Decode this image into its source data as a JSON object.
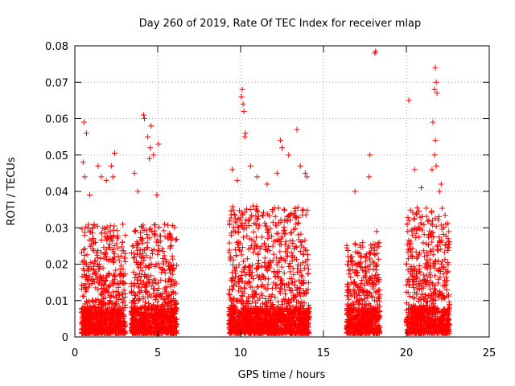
{
  "chart_data": {
    "type": "scatter",
    "title": "Day 260 of 2019, Rate Of TEC Index for receiver mlap",
    "xlabel": "GPS time / hours",
    "ylabel": "ROTI / TECUs",
    "xlim": [
      0,
      25
    ],
    "ylim": [
      0,
      0.08
    ],
    "x_ticks": [
      0,
      5,
      10,
      15,
      20,
      25
    ],
    "x_tick_labels": [
      "0",
      "5",
      "10",
      "15",
      "20",
      "25"
    ],
    "y_ticks": [
      0,
      0.01,
      0.02,
      0.03,
      0.04,
      0.05,
      0.06,
      0.07,
      0.08
    ],
    "y_tick_labels": [
      "0",
      "0.01",
      "0.02",
      "0.03",
      "0.04",
      "0.05",
      "0.06",
      "0.07",
      "0.08"
    ],
    "grid": true,
    "marker": "+",
    "color": "#ff0000",
    "series": [
      {
        "name": "ROTI",
        "clusters": [
          {
            "x_start": 0.4,
            "x_end": 3.05,
            "typical_max": 0.03
          },
          {
            "x_start": 3.4,
            "x_end": 6.15,
            "typical_max": 0.03
          },
          {
            "x_start": 9.3,
            "x_end": 14.15,
            "typical_max": 0.035
          },
          {
            "x_start": 16.4,
            "x_end": 18.4,
            "typical_max": 0.025
          },
          {
            "x_start": 20.0,
            "x_end": 22.6,
            "typical_max": 0.035
          }
        ],
        "points": [
          [
            0.55,
            0.059
          ],
          [
            0.7,
            0.056
          ],
          [
            0.5,
            0.048
          ],
          [
            0.6,
            0.044
          ],
          [
            1.4,
            0.047
          ],
          [
            1.6,
            0.044
          ],
          [
            2.2,
            0.047
          ],
          [
            2.4,
            0.0505
          ],
          [
            2.3,
            0.044
          ],
          [
            1.9,
            0.043
          ],
          [
            0.9,
            0.039
          ],
          [
            3.6,
            0.045
          ],
          [
            4.15,
            0.061
          ],
          [
            4.2,
            0.06
          ],
          [
            4.4,
            0.055
          ],
          [
            4.55,
            0.052
          ],
          [
            4.6,
            0.058
          ],
          [
            4.75,
            0.05
          ],
          [
            5.05,
            0.053
          ],
          [
            4.5,
            0.049
          ],
          [
            4.95,
            0.039
          ],
          [
            3.8,
            0.04
          ],
          [
            10.1,
            0.068
          ],
          [
            10.05,
            0.066
          ],
          [
            10.15,
            0.064
          ],
          [
            10.2,
            0.062
          ],
          [
            10.3,
            0.056
          ],
          [
            10.25,
            0.055
          ],
          [
            9.5,
            0.046
          ],
          [
            10.6,
            0.047
          ],
          [
            11.0,
            0.044
          ],
          [
            11.6,
            0.042
          ],
          [
            12.4,
            0.054
          ],
          [
            12.5,
            0.052
          ],
          [
            12.9,
            0.05
          ],
          [
            13.4,
            0.057
          ],
          [
            13.6,
            0.047
          ],
          [
            13.9,
            0.045
          ],
          [
            14.0,
            0.044
          ],
          [
            12.2,
            0.045
          ],
          [
            9.8,
            0.043
          ],
          [
            18.1,
            0.078
          ],
          [
            18.15,
            0.0785
          ],
          [
            17.8,
            0.05
          ],
          [
            17.75,
            0.044
          ],
          [
            16.9,
            0.04
          ],
          [
            18.2,
            0.029
          ],
          [
            20.15,
            0.065
          ],
          [
            21.75,
            0.074
          ],
          [
            21.8,
            0.07
          ],
          [
            21.7,
            0.068
          ],
          [
            21.85,
            0.067
          ],
          [
            21.6,
            0.059
          ],
          [
            21.75,
            0.054
          ],
          [
            21.7,
            0.05
          ],
          [
            21.8,
            0.047
          ],
          [
            20.5,
            0.046
          ],
          [
            22.1,
            0.042
          ],
          [
            20.9,
            0.041
          ],
          [
            22.0,
            0.04
          ],
          [
            21.55,
            0.046
          ]
        ]
      }
    ]
  }
}
